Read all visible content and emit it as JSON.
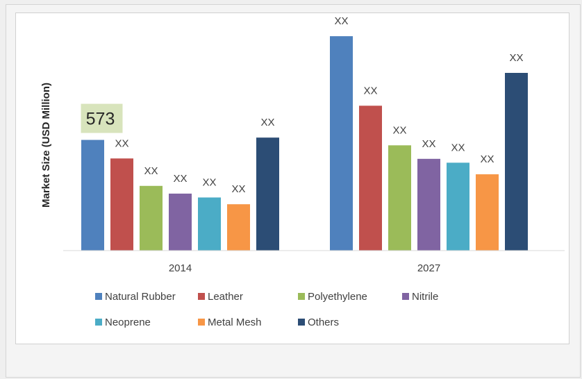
{
  "chart_data": {
    "type": "bar",
    "categories": [
      "2014",
      "2027"
    ],
    "ylabel": "Market Size (USD Million)",
    "xlabel": "",
    "series": [
      {
        "name": "Natural Rubber",
        "color": "#4f81bd",
        "values": [
          573,
          1110
        ],
        "labels": [
          "573",
          "XX"
        ]
      },
      {
        "name": "Leather",
        "color": "#c0504d",
        "values": [
          477,
          750
        ],
        "labels": [
          "XX",
          "XX"
        ]
      },
      {
        "name": "Polyethylene",
        "color": "#9bbb59",
        "values": [
          335,
          545
        ],
        "labels": [
          "XX",
          "XX"
        ]
      },
      {
        "name": "Nitrile",
        "color": "#8064a2",
        "values": [
          295,
          475
        ],
        "labels": [
          "XX",
          "XX"
        ]
      },
      {
        "name": "Neoprene",
        "color": "#4bacc6",
        "values": [
          275,
          455
        ],
        "labels": [
          "XX",
          "XX"
        ]
      },
      {
        "name": "Metal Mesh",
        "color": "#f79646",
        "values": [
          240,
          395
        ],
        "labels": [
          "XX",
          "XX"
        ]
      },
      {
        "name": "Others",
        "color": "#2c4d75",
        "values": [
          585,
          920
        ],
        "labels": [
          "XX",
          "XX"
        ]
      }
    ],
    "ylim": [
      0,
      1150
    ],
    "grid": false,
    "legend_position": "bottom",
    "highlight": {
      "series": "Natural Rubber",
      "category": "2014",
      "text": "573",
      "color": "#d8e4bc"
    }
  }
}
